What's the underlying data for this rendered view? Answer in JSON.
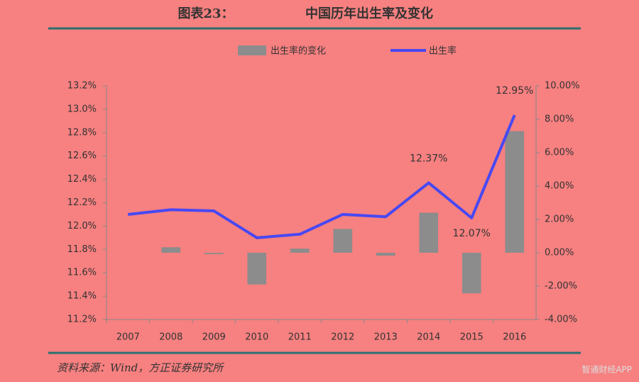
{
  "chart_data": {
    "type": "bar_line",
    "figure_label": "图表23：",
    "title": "中国历年出生率及变化",
    "source": "资料来源：Wind，方正证券研究所",
    "watermark": "智通财经APP",
    "categories": [
      "2007",
      "2008",
      "2009",
      "2010",
      "2011",
      "2012",
      "2013",
      "2014",
      "2015",
      "2016"
    ],
    "series": [
      {
        "name": "出生率的变化",
        "type": "bar",
        "axis": "y2",
        "color": "#8c8c8c",
        "values": [
          null,
          0.33,
          -0.08,
          -1.9,
          0.25,
          1.43,
          -0.17,
          2.4,
          -2.43,
          7.29
        ]
      },
      {
        "name": "出生率",
        "type": "line",
        "axis": "y",
        "color": "#4848f2",
        "values": [
          12.1,
          12.14,
          12.13,
          11.9,
          11.93,
          12.1,
          12.08,
          12.37,
          12.07,
          12.95
        ],
        "value_labels": [
          null,
          null,
          null,
          null,
          null,
          null,
          null,
          "12.37%",
          "12.07%",
          "12.95%"
        ]
      }
    ],
    "ylim": [
      11.2,
      13.2
    ],
    "yticks": [
      {
        "value": 11.2,
        "label": "11.2%"
      },
      {
        "value": 11.4,
        "label": "11.4%"
      },
      {
        "value": 11.6,
        "label": "11.6%"
      },
      {
        "value": 11.8,
        "label": "11.8%"
      },
      {
        "value": 12.0,
        "label": "12.0%"
      },
      {
        "value": 12.2,
        "label": "12.2%"
      },
      {
        "value": 12.4,
        "label": "12.4%"
      },
      {
        "value": 12.6,
        "label": "12.6%"
      },
      {
        "value": 12.8,
        "label": "12.8%"
      },
      {
        "value": 13.0,
        "label": "13.0%"
      },
      {
        "value": 13.2,
        "label": "13.2%"
      }
    ],
    "y2lim": [
      -4,
      10
    ],
    "y2ticks": [
      {
        "value": -4,
        "label": "-4.00%"
      },
      {
        "value": -2,
        "label": "-2.00%"
      },
      {
        "value": 0,
        "label": "0.00%"
      },
      {
        "value": 2,
        "label": "2.00%"
      },
      {
        "value": 4,
        "label": "4.00%"
      },
      {
        "value": 6,
        "label": "6.00%"
      },
      {
        "value": 8,
        "label": "8.00%"
      },
      {
        "value": 10,
        "label": "10.00%"
      }
    ],
    "legend": "top"
  }
}
